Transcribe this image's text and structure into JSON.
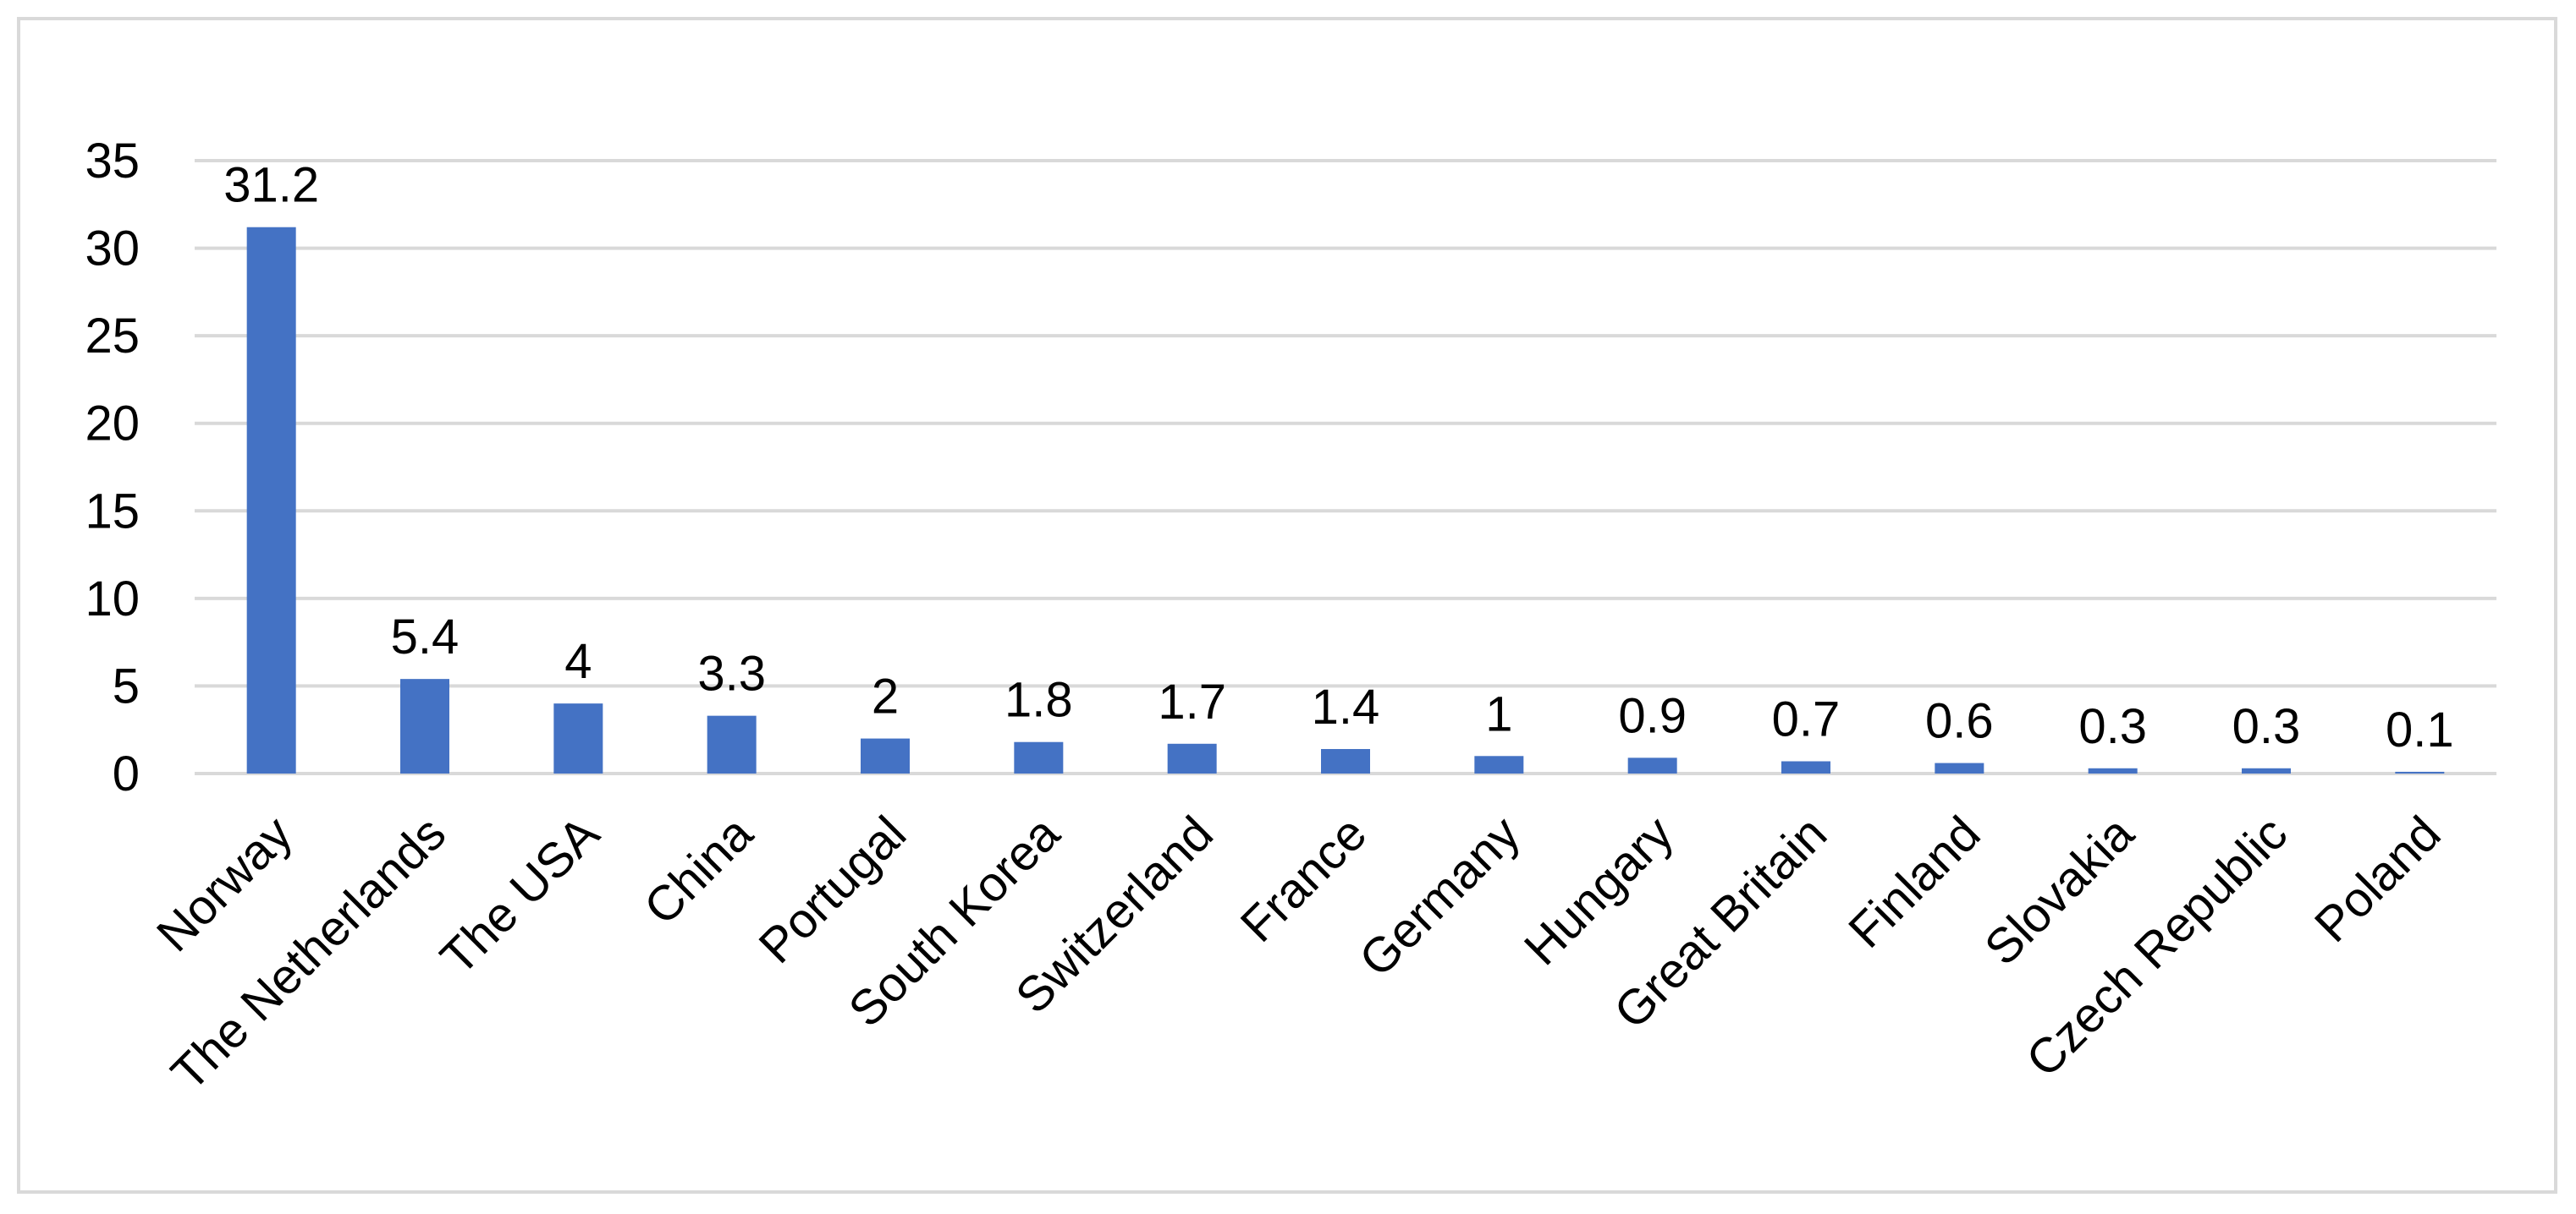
{
  "chart_data": {
    "type": "bar",
    "categories": [
      "Norway",
      "The Netherlands",
      "The USA",
      "China",
      "Portugal",
      "South Korea",
      "Switzerland",
      "France",
      "Germany",
      "Hungary",
      "Great Britain",
      "Finland",
      "Slovakia",
      "Czech Republic",
      "Poland"
    ],
    "values": [
      31.2,
      5.4,
      4,
      3.3,
      2,
      1.8,
      1.7,
      1.4,
      1,
      0.9,
      0.7,
      0.6,
      0.3,
      0.3,
      0.1
    ],
    "data_labels": [
      "31.2",
      "5.4",
      "4",
      "3.3",
      "2",
      "1.8",
      "1.7",
      "1.4",
      "1",
      "0.9",
      "0.7",
      "0.6",
      "0.3",
      "0.3",
      "0.1"
    ],
    "yticks": [
      0,
      5,
      10,
      15,
      20,
      25,
      30,
      35
    ],
    "ylim": [
      0,
      35
    ],
    "title": "",
    "xlabel": "",
    "ylabel": "",
    "grid": true,
    "legend": "none",
    "bar_color": "#4472c4",
    "grid_color": "#d9d9d9",
    "border_color": "#d9d9d9"
  }
}
